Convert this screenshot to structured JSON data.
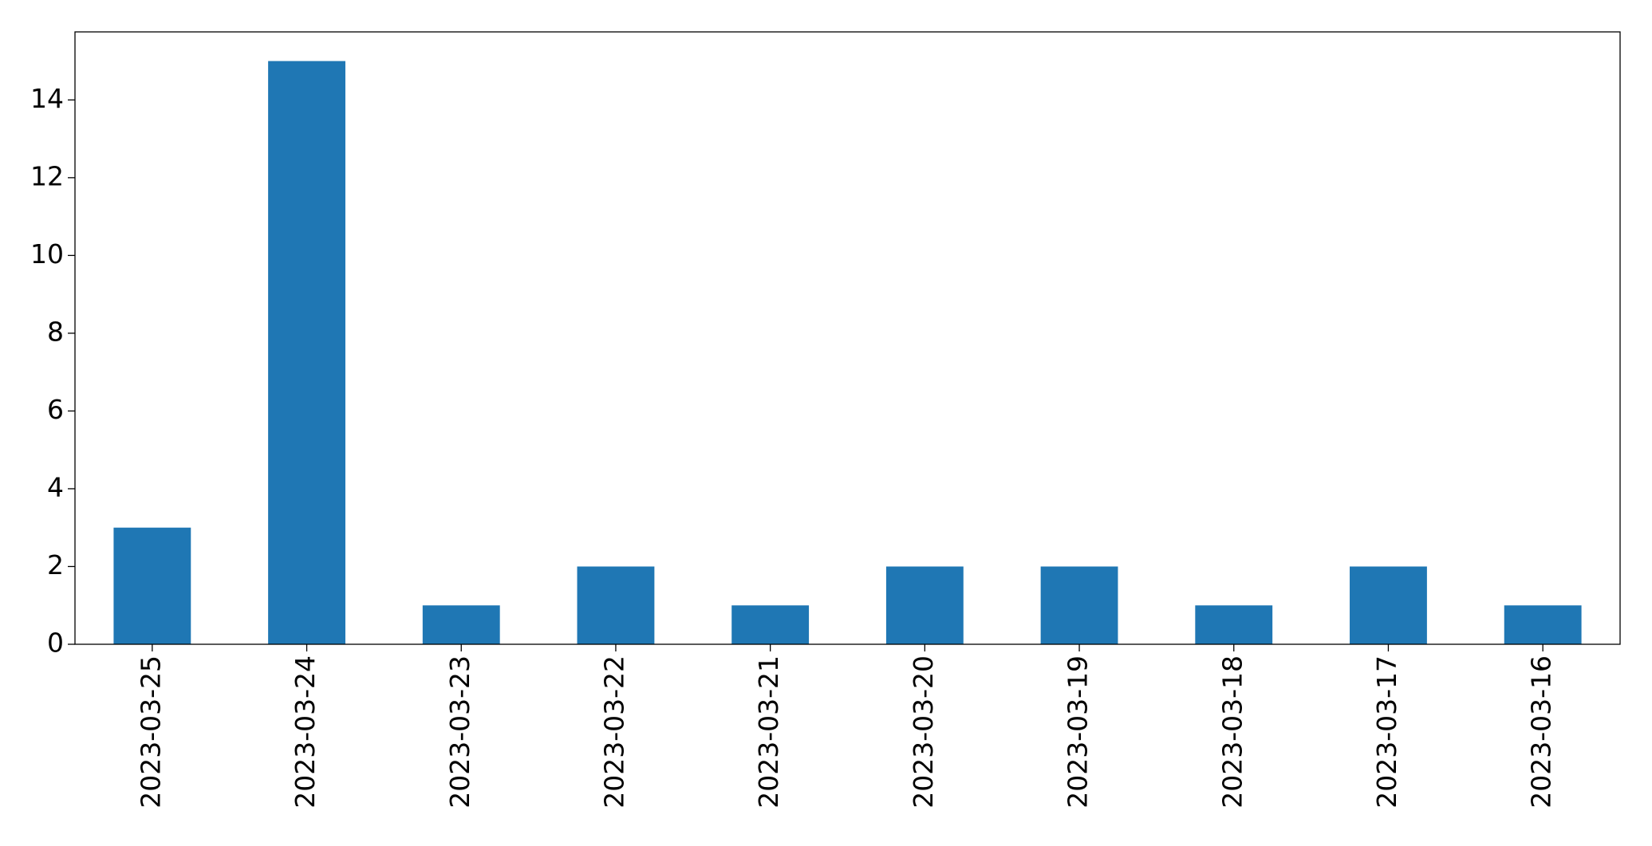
{
  "chart_data": {
    "type": "bar",
    "categories": [
      "2023-03-25",
      "2023-03-24",
      "2023-03-23",
      "2023-03-22",
      "2023-03-21",
      "2023-03-20",
      "2023-03-19",
      "2023-03-18",
      "2023-03-17",
      "2023-03-16"
    ],
    "values": [
      3,
      15,
      1,
      2,
      1,
      2,
      2,
      1,
      2,
      1
    ],
    "color": "#1f77b4",
    "ylim": [
      0,
      15.75
    ],
    "yticks": [
      0,
      2,
      4,
      6,
      8,
      10,
      12,
      14
    ],
    "grid": false
  }
}
